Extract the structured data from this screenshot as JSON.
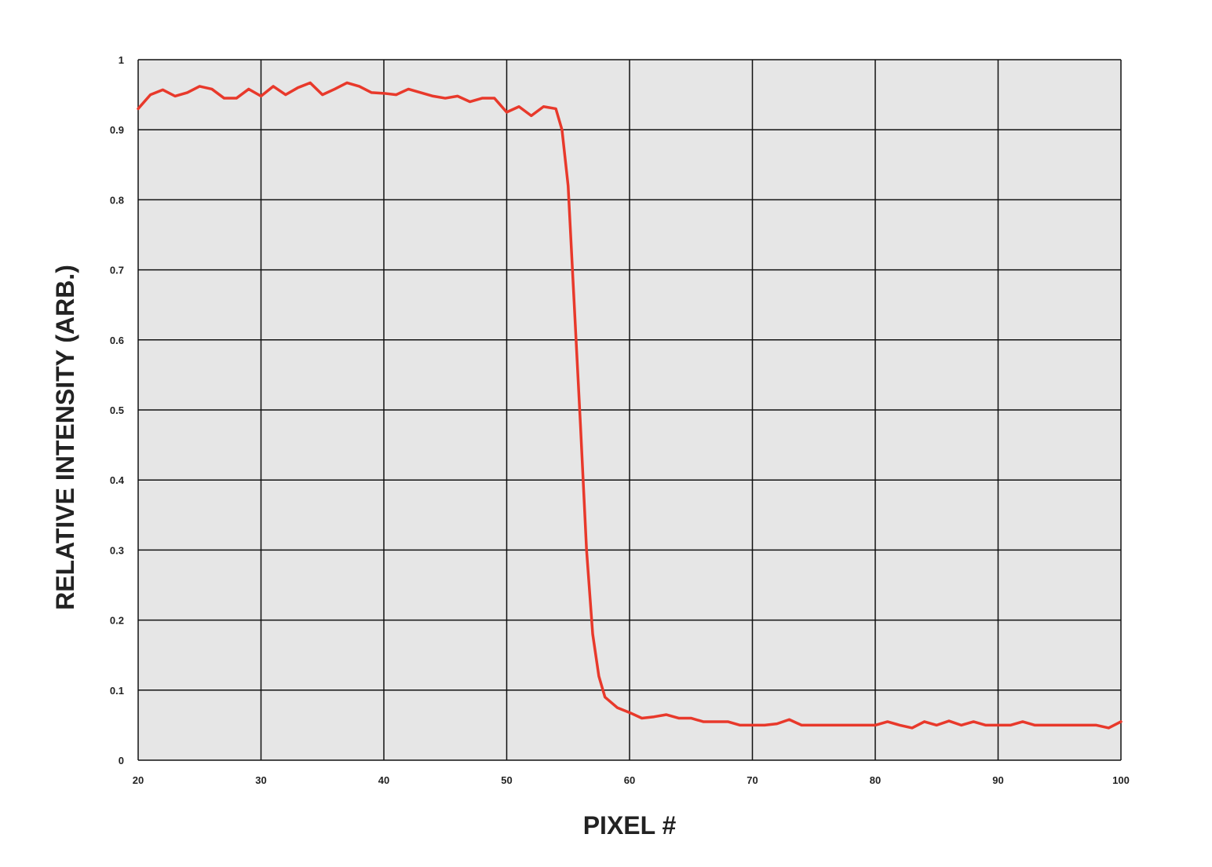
{
  "chart_data": {
    "type": "line",
    "xlabel": "PIXEL #",
    "ylabel": "RELATIVE INTENSITY (ARB.)",
    "xlim": [
      20,
      100
    ],
    "xticks": [
      20,
      30,
      40,
      50,
      60,
      70,
      80,
      90,
      100
    ],
    "ylim": [
      0,
      1
    ],
    "yticks": [
      0,
      0.1,
      0.2,
      0.3,
      0.4,
      0.5,
      0.6,
      0.7,
      0.8,
      0.9,
      1
    ],
    "grid": true,
    "series": [
      {
        "color": "#e8392b",
        "x": [
          20,
          21,
          22,
          23,
          24,
          25,
          26,
          27,
          28,
          29,
          30,
          31,
          32,
          33,
          34,
          35,
          36,
          37,
          38,
          39,
          40,
          41,
          42,
          43,
          44,
          45,
          46,
          47,
          48,
          49,
          50,
          51,
          52,
          53,
          54,
          54.5,
          55,
          55.5,
          56,
          56.5,
          57,
          57.5,
          58,
          59,
          60,
          61,
          62,
          63,
          64,
          65,
          66,
          67,
          68,
          69,
          70,
          71,
          72,
          73,
          74,
          75,
          76,
          77,
          78,
          79,
          80,
          81,
          82,
          83,
          84,
          85,
          86,
          87,
          88,
          89,
          90,
          91,
          92,
          93,
          94,
          95,
          96,
          97,
          98,
          99,
          100
        ],
        "values": [
          0.93,
          0.95,
          0.957,
          0.948,
          0.953,
          0.962,
          0.958,
          0.945,
          0.945,
          0.958,
          0.948,
          0.962,
          0.95,
          0.96,
          0.967,
          0.95,
          0.958,
          0.967,
          0.962,
          0.953,
          0.952,
          0.95,
          0.958,
          0.953,
          0.948,
          0.945,
          0.948,
          0.94,
          0.945,
          0.945,
          0.925,
          0.933,
          0.92,
          0.933,
          0.93,
          0.9,
          0.82,
          0.65,
          0.48,
          0.3,
          0.18,
          0.12,
          0.09,
          0.075,
          0.068,
          0.06,
          0.062,
          0.065,
          0.06,
          0.06,
          0.055,
          0.055,
          0.055,
          0.05,
          0.05,
          0.05,
          0.052,
          0.058,
          0.05,
          0.05,
          0.05,
          0.05,
          0.05,
          0.05,
          0.05,
          0.055,
          0.05,
          0.046,
          0.055,
          0.05,
          0.056,
          0.05,
          0.055,
          0.05,
          0.05,
          0.05,
          0.055,
          0.05,
          0.05,
          0.05,
          0.05,
          0.05,
          0.05,
          0.046,
          0.055
        ]
      }
    ]
  }
}
